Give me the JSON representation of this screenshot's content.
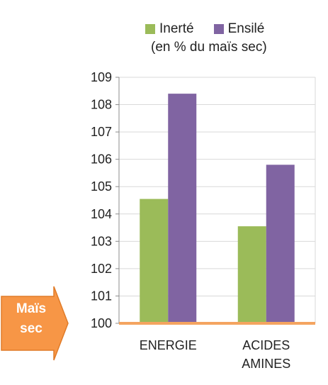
{
  "legend": {
    "note": "(en % du maïs sec)"
  },
  "badge": {
    "line1": "Maïs",
    "line2": "sec",
    "color": "#f79646",
    "border_color": "#e07b28"
  },
  "colors": {
    "baseline": "#f4a460",
    "axis": "#8c8c8c",
    "grid": "#d9d9d9"
  },
  "chart_data": {
    "type": "bar",
    "categories": [
      "ENERGIE",
      "ACIDES AMINES"
    ],
    "category_lines": [
      [
        "ENERGIE"
      ],
      [
        "ACIDES",
        "AMINES"
      ]
    ],
    "series": [
      {
        "name": "Inerté",
        "color": "#9bbb59",
        "values": [
          104.55,
          103.55
        ]
      },
      {
        "name": "Ensilé",
        "color": "#8064a2",
        "values": [
          108.4,
          105.8
        ]
      }
    ],
    "yticks": [
      "109",
      "108",
      "107",
      "106",
      "105",
      "104",
      "103",
      "102",
      "101",
      "100"
    ],
    "ylim": [
      100,
      109
    ],
    "grid": true,
    "legend_position": "top",
    "title": "",
    "xlabel": "",
    "ylabel": ""
  }
}
